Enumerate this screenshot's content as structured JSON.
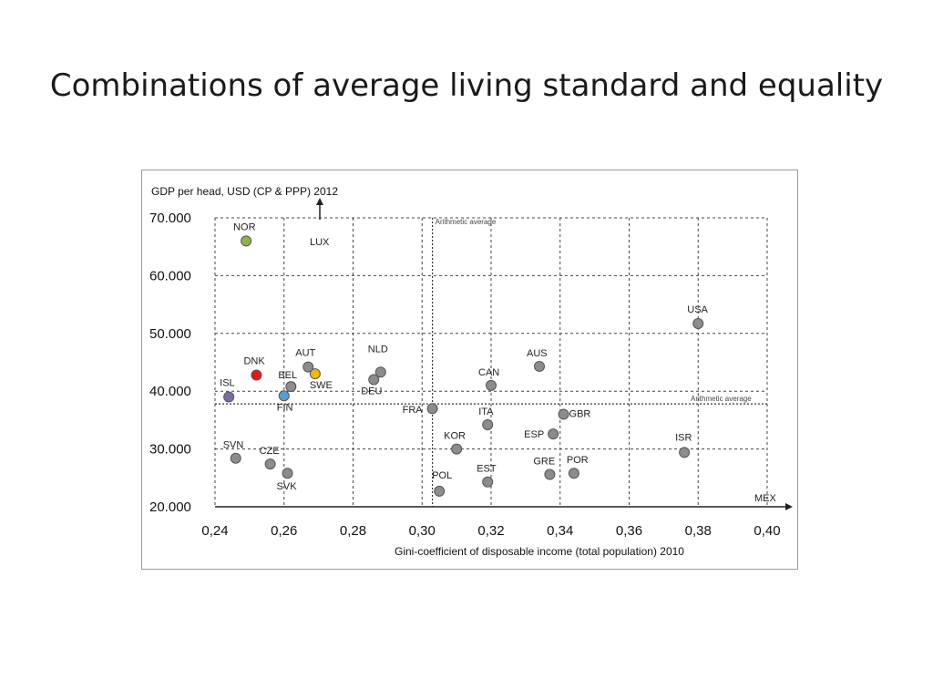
{
  "slide": {
    "title": "Combinations of average living standard and equality"
  },
  "colors": {
    "default_point": "#8c8c8c",
    "NOR": "#8fb24f",
    "DNK": "#e8141c",
    "SWE": "#f2b705",
    "FIN": "#5b9bd5",
    "ISL": "#7b6aa8"
  },
  "chart_data": {
    "type": "scatter",
    "title": "",
    "ylabel": "GDP per head, USD (CP & PPP) 2012",
    "xlabel": "Gini-coefficient of disposable income (total population) 2010",
    "xlim": [
      0.24,
      0.4
    ],
    "ylim": [
      20000,
      70000
    ],
    "x_ticks": [
      "0,24",
      "0,26",
      "0,28",
      "0,30",
      "0,32",
      "0,34",
      "0,36",
      "0,38",
      "0,40"
    ],
    "x_tick_values": [
      0.24,
      0.26,
      0.28,
      0.3,
      0.32,
      0.34,
      0.36,
      0.38,
      0.4
    ],
    "y_ticks": [
      "20.000",
      "30.000",
      "40.000",
      "50.000",
      "60.000",
      "70.000"
    ],
    "y_tick_values": [
      20000,
      30000,
      40000,
      50000,
      60000,
      70000
    ],
    "grid": true,
    "reference_lines": {
      "x": 0.303,
      "y": 37800,
      "x_label": "Arithmetic average",
      "y_label": "Arithmetic average"
    },
    "points": [
      {
        "label": "NOR",
        "x": 0.249,
        "y": 66000,
        "color": "#8fb24f",
        "lx": -14,
        "ly": -12
      },
      {
        "label": "DNK",
        "x": 0.252,
        "y": 42800,
        "color": "#e8141c",
        "lx": -14,
        "ly": -12
      },
      {
        "label": "SWE",
        "x": 0.269,
        "y": 43000,
        "color": "#f2b705",
        "lx": -6,
        "ly": 16
      },
      {
        "label": "FIN",
        "x": 0.26,
        "y": 39200,
        "color": "#5b9bd5",
        "lx": -8,
        "ly": 16
      },
      {
        "label": "ISL",
        "x": 0.244,
        "y": 39000,
        "color": "#7b6aa8",
        "lx": -10,
        "ly": -12
      },
      {
        "label": "AUT",
        "x": 0.267,
        "y": 44200,
        "lx": -14,
        "ly": -12
      },
      {
        "label": "BEL",
        "x": 0.262,
        "y": 40800,
        "lx": -14,
        "ly": -9
      },
      {
        "label": "NLD",
        "x": 0.288,
        "y": 43300,
        "lx": -14,
        "ly": -22
      },
      {
        "label": "DEU",
        "x": 0.286,
        "y": 42000,
        "lx": -14,
        "ly": 16
      },
      {
        "label": "FRA",
        "x": 0.303,
        "y": 37000,
        "lx": -33,
        "ly": 5
      },
      {
        "label": "CAN",
        "x": 0.32,
        "y": 41000,
        "lx": -14,
        "ly": -11
      },
      {
        "label": "AUS",
        "x": 0.334,
        "y": 44300,
        "lx": -14,
        "ly": -11
      },
      {
        "label": "USA",
        "x": 0.38,
        "y": 51700,
        "lx": -12,
        "ly": -12
      },
      {
        "label": "ITA",
        "x": 0.319,
        "y": 34200,
        "lx": -10,
        "ly": -11
      },
      {
        "label": "GBR",
        "x": 0.341,
        "y": 36000,
        "lx": 6,
        "ly": 3
      },
      {
        "label": "ESP",
        "x": 0.338,
        "y": 32600,
        "lx": -32,
        "ly": 4
      },
      {
        "label": "KOR",
        "x": 0.31,
        "y": 30000,
        "lx": -14,
        "ly": -11
      },
      {
        "label": "ISR",
        "x": 0.376,
        "y": 29400,
        "lx": -10,
        "ly": -13
      },
      {
        "label": "SVN",
        "x": 0.246,
        "y": 28400,
        "lx": -14,
        "ly": -11
      },
      {
        "label": "CZE",
        "x": 0.256,
        "y": 27400,
        "lx": -12,
        "ly": -11
      },
      {
        "label": "SVK",
        "x": 0.261,
        "y": 25800,
        "lx": -12,
        "ly": 18
      },
      {
        "label": "GRE",
        "x": 0.337,
        "y": 25600,
        "lx": -18,
        "ly": -11
      },
      {
        "label": "POR",
        "x": 0.344,
        "y": 25800,
        "lx": -8,
        "ly": -11
      },
      {
        "label": "EST",
        "x": 0.319,
        "y": 24300,
        "lx": -12,
        "ly": -11
      },
      {
        "label": "POL",
        "x": 0.305,
        "y": 22700,
        "lx": -8,
        "ly": -14
      }
    ],
    "offscale_labels": {
      "LUX": "LUX",
      "MEX": "MEX"
    }
  }
}
